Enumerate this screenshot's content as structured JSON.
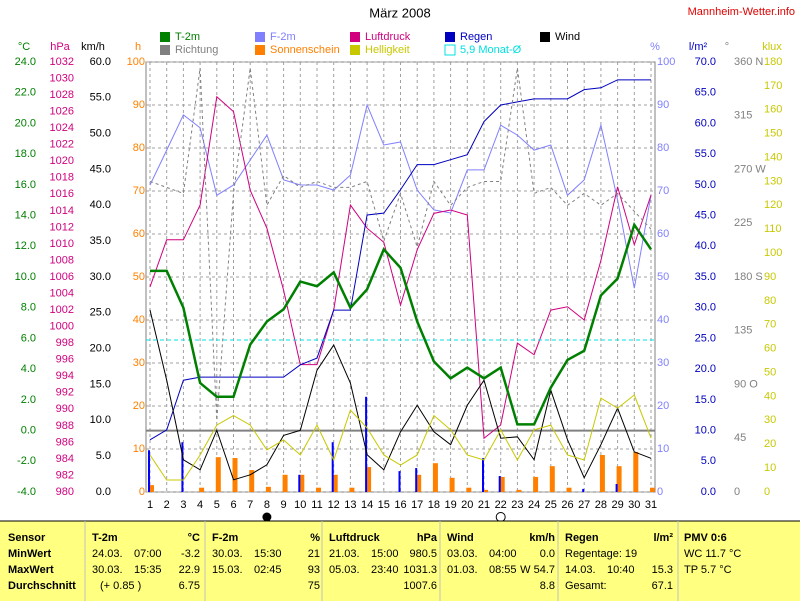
{
  "chart_data": {
    "type": "line",
    "title": "März 2008",
    "source": "Mannheim-Wetter.info",
    "x": [
      1,
      2,
      3,
      4,
      5,
      6,
      7,
      8,
      9,
      10,
      11,
      12,
      13,
      14,
      15,
      16,
      17,
      18,
      19,
      20,
      21,
      22,
      23,
      24,
      25,
      26,
      27,
      28,
      29,
      30,
      31
    ],
    "xlim": [
      1,
      31
    ],
    "xticks": [
      1,
      2,
      3,
      4,
      5,
      6,
      7,
      8,
      9,
      10,
      11,
      12,
      13,
      14,
      15,
      16,
      17,
      18,
      19,
      20,
      21,
      22,
      23,
      24,
      25,
      26,
      27,
      28,
      29,
      30,
      31
    ],
    "axes": [
      {
        "title": "°C",
        "color": "#008000",
        "lim": [
          -4,
          24
        ],
        "zero_line": true,
        "ticks": [
          {
            "value": -4,
            "label": "-4.0"
          },
          {
            "value": -2,
            "label": "-2.0"
          },
          {
            "value": 0,
            "label": "0.0"
          },
          {
            "value": 2,
            "label": "2.0"
          },
          {
            "value": 4,
            "label": "4.0"
          },
          {
            "value": 6,
            "label": "6.0"
          },
          {
            "value": 8,
            "label": "8.0"
          },
          {
            "value": 10,
            "label": "10.0"
          },
          {
            "value": 12,
            "label": "12.0"
          },
          {
            "value": 14,
            "label": "14.0"
          },
          {
            "value": 16,
            "label": "16.0"
          },
          {
            "value": 18,
            "label": "18.0"
          },
          {
            "value": 20,
            "label": "20.0"
          },
          {
            "value": 22,
            "label": "22.0"
          },
          {
            "value": 24,
            "label": "24.0"
          }
        ]
      },
      {
        "title": "hPa",
        "color": "#d0007f",
        "lim": [
          980,
          1032
        ],
        "ticks": [
          980,
          982,
          984,
          986,
          988,
          990,
          992,
          994,
          996,
          998,
          1000,
          1002,
          1004,
          1006,
          1008,
          1010,
          1012,
          1014,
          1016,
          1018,
          1020,
          1022,
          1024,
          1026,
          1028,
          1030,
          1032
        ]
      },
      {
        "title": "km/h",
        "color": "#000000",
        "lim": [
          0,
          60
        ],
        "ticks": [
          {
            "value": 0,
            "label": "0.0"
          },
          {
            "value": 5,
            "label": "5.0"
          },
          {
            "value": 10,
            "label": "10.0"
          },
          {
            "value": 15,
            "label": "15.0"
          },
          {
            "value": 20,
            "label": "20.0"
          },
          {
            "value": 25,
            "label": "25.0"
          },
          {
            "value": 30,
            "label": "30.0"
          },
          {
            "value": 35,
            "label": "35.0"
          },
          {
            "value": 40,
            "label": "40.0"
          },
          {
            "value": 45,
            "label": "45.0"
          },
          {
            "value": 50,
            "label": "50.0"
          },
          {
            "value": 55,
            "label": "55.0"
          },
          {
            "value": 60,
            "label": "60.0"
          }
        ]
      },
      {
        "title": "h",
        "color": "#ff8000",
        "lim": [
          0,
          100
        ],
        "grid": true,
        "ticks": [
          0,
          10,
          20,
          30,
          40,
          50,
          60,
          70,
          80,
          90,
          100
        ]
      },
      {
        "title": "%",
        "color": "#8080ff",
        "lim": [
          0,
          100
        ],
        "ticks": [
          0,
          10,
          20,
          30,
          40,
          50,
          60,
          70,
          80,
          90,
          100
        ]
      },
      {
        "title": "l/m²",
        "color": "#0000c0",
        "lim": [
          0,
          70
        ],
        "ticks": [
          {
            "value": 0,
            "label": "0.0"
          },
          {
            "value": 5,
            "label": "5.0"
          },
          {
            "value": 10,
            "label": "10.0"
          },
          {
            "value": 15,
            "label": "15.0"
          },
          {
            "value": 20,
            "label": "20.0"
          },
          {
            "value": 25,
            "label": "25.0"
          },
          {
            "value": 30,
            "label": "30.0"
          },
          {
            "value": 35,
            "label": "35.0"
          },
          {
            "value": 40,
            "label": "40.0"
          },
          {
            "value": 45,
            "label": "45.0"
          },
          {
            "value": 50,
            "label": "50.0"
          },
          {
            "value": 55,
            "label": "55.0"
          },
          {
            "value": 60,
            "label": "60.0"
          },
          {
            "value": 65,
            "label": "65.0"
          },
          {
            "value": 70,
            "label": "70.0"
          }
        ]
      },
      {
        "title": "°",
        "color": "#808080",
        "lim": [
          0,
          360
        ],
        "ticks": [
          0,
          45,
          {
            "value": 90,
            "label": "90 O"
          },
          135,
          {
            "value": 180,
            "label": "180 S"
          },
          225,
          {
            "value": 270,
            "label": "270 W"
          },
          315,
          {
            "value": 360,
            "label": "360 N"
          }
        ]
      },
      {
        "title": "klux",
        "color": "#c8c800",
        "lim": [
          0,
          180
        ],
        "ticks": [
          0,
          10,
          20,
          30,
          40,
          50,
          60,
          70,
          80,
          90,
          100,
          110,
          120,
          130,
          140,
          150,
          160,
          170,
          180
        ]
      }
    ],
    "series": [
      {
        "name": "T-2m",
        "color": "#008000",
        "axis": 0,
        "style": "line",
        "width": 2.5,
        "values": [
          10.4,
          10.4,
          8.0,
          3.1,
          2.2,
          2.2,
          5.6,
          7.1,
          7.9,
          9.7,
          9.4,
          10.3,
          8.0,
          9.2,
          11.8,
          10.6,
          7.1,
          4.5,
          3.4,
          4.1,
          3.4,
          4.1,
          0.4,
          0.4,
          2.8,
          4.6,
          5.2,
          8.8,
          9.9,
          13.4,
          11.8
        ]
      },
      {
        "name": "F-2m",
        "color": "#8080ff",
        "axis": 4,
        "style": "line",
        "width": 1,
        "values": [
          71.4,
          79.5,
          87.7,
          84.7,
          69,
          71.4,
          77.2,
          83,
          72.6,
          71.4,
          71.4,
          70.2,
          73.7,
          90,
          80.7,
          81.4,
          70.2,
          65.6,
          64.9,
          74.9,
          74.9,
          85.3,
          83,
          79.5,
          80.7,
          69,
          72.6,
          85.3,
          67.9,
          47.4,
          69
        ]
      },
      {
        "name": "Luftdruck",
        "color": "#d0007f",
        "axis": 1,
        "style": "line",
        "width": 1,
        "values": [
          1004.8,
          1010.5,
          1010.5,
          1014.7,
          1027.8,
          1026,
          1016.5,
          1011.9,
          1004.4,
          995.4,
          995.4,
          1002,
          1014.7,
          1011.9,
          1010.2,
          1002.6,
          1009.3,
          1013.7,
          1014.1,
          1013.5,
          986.5,
          988.1,
          998,
          996.6,
          1002,
          1002.4,
          1000.8,
          1008,
          1016.9,
          1009.9,
          1015.9
        ]
      },
      {
        "name": "Regen",
        "color": "#0000c0",
        "axis": 5,
        "style": "line",
        "width": 1,
        "values": [
          8.5,
          10.1,
          18.2,
          18.7,
          18.7,
          18.7,
          18.7,
          18.7,
          18.7,
          20.7,
          21.8,
          29.6,
          29.6,
          45.1,
          45.4,
          49.2,
          53.3,
          53.3,
          54.1,
          54.9,
          60.3,
          63,
          63.5,
          64,
          64,
          64,
          65.5,
          65.8,
          67.1,
          67.1,
          67.1
        ],
        "bars": [
          6.8,
          0,
          8.1,
          0,
          0,
          0,
          0,
          0,
          0,
          2.8,
          0,
          8.1,
          0,
          15.5,
          0,
          3.4,
          3.9,
          0,
          0,
          0,
          5.5,
          2.6,
          0,
          0,
          0,
          0,
          0.5,
          0,
          1.3,
          0,
          0
        ]
      },
      {
        "name": "Wind",
        "color": "#000000",
        "axis": 2,
        "style": "line",
        "width": 1,
        "values": [
          25.4,
          15.6,
          4.5,
          3.1,
          8.6,
          1.7,
          2.4,
          3.8,
          7.9,
          8.6,
          17,
          20.5,
          15.2,
          5.2,
          3.1,
          8.4,
          12.1,
          8.4,
          6.6,
          12.1,
          15.6,
          7.5,
          7.7,
          4.5,
          14.2,
          7.3,
          2,
          6.6,
          11.7,
          5.6,
          4.7
        ]
      },
      {
        "name": "Richtung",
        "color": "#808080",
        "axis": 6,
        "style": "dashed",
        "width": 1,
        "values": [
          260,
          255,
          250,
          355,
          60,
          250,
          355,
          240,
          265,
          255,
          260,
          255,
          255,
          260,
          210,
          250,
          205,
          260,
          240,
          255,
          260,
          260,
          355,
          250,
          255,
          240,
          250,
          240,
          250,
          235,
          220
        ]
      },
      {
        "name": "Sonnenschein",
        "color": "#ff8000",
        "axis": 3,
        "style": "bars",
        "values": [
          1.6,
          0,
          0,
          1,
          8.1,
          7.9,
          5.1,
          1.2,
          4,
          4,
          1,
          4,
          1,
          5.8,
          0,
          0,
          4,
          6.7,
          3.3,
          1,
          0.5,
          3.5,
          0.5,
          3.5,
          6,
          1,
          0,
          8.6,
          6,
          9.3,
          1
        ]
      },
      {
        "name": "Helligkeit",
        "color": "#c8c800",
        "axis": 7,
        "style": "line",
        "width": 1,
        "values": [
          15.5,
          5,
          5,
          15.5,
          28,
          32,
          28,
          17.6,
          21.8,
          15.5,
          28,
          13.4,
          34.3,
          26.8,
          15.5,
          11.3,
          15.5,
          32,
          26,
          15.5,
          13.4,
          26,
          13.4,
          26,
          28,
          15.5,
          13.4,
          39.3,
          35.1,
          40.6,
          22.6
        ]
      },
      {
        "name": "5,9 Monat-Ø",
        "color": "#00e0e0",
        "axis": 0,
        "style": "hline",
        "value": 5.9
      }
    ]
  },
  "table": {
    "sensor": {
      "header": "Sensor",
      "rows": [
        "MinWert",
        "MaxWert",
        "Durchschnitt"
      ]
    },
    "columns": [
      {
        "header": "T-2m",
        "unit": "°C",
        "rows": [
          {
            "date": "24.03.",
            "time": "07:00",
            "value": "-3.2"
          },
          {
            "date": "30.03.",
            "time": "15:35",
            "value": "22.9"
          },
          {
            "note": "(+ 0.85 )",
            "value": "6.75"
          }
        ]
      },
      {
        "header": "F-2m",
        "unit": "%",
        "rows": [
          {
            "date": "30.03.",
            "time": "15:30",
            "value": "21"
          },
          {
            "date": "15.03.",
            "time": "02:45",
            "value": "93"
          },
          {
            "value": "75"
          }
        ]
      },
      {
        "header": "Luftdruck",
        "unit": "hPa",
        "rows": [
          {
            "date": "21.03.",
            "time": "15:00",
            "value": "980.5"
          },
          {
            "date": "05.03.",
            "time": "23:40",
            "value": "1031.3"
          },
          {
            "value": "1007.6"
          }
        ]
      },
      {
        "header": "Wind",
        "unit": "km/h",
        "rows": [
          {
            "date": "03.03.",
            "time": "04:00",
            "value": "0.0"
          },
          {
            "date": "01.03.",
            "time": "08:55",
            "value": "W 54.7"
          },
          {
            "value": "8.8"
          }
        ]
      },
      {
        "header": "Regen",
        "unit": "l/m²",
        "rows": [
          {
            "note": "Regentage: 19"
          },
          {
            "date": "14.03.",
            "time": "10:40",
            "value": "15.3"
          },
          {
            "note": "Gesamt:",
            "value": "67.1"
          }
        ]
      }
    ],
    "pmv": {
      "header": "PMV 0:6",
      "lines": [
        "WC 11.7 °C",
        "TP 5.7 °C"
      ]
    }
  }
}
